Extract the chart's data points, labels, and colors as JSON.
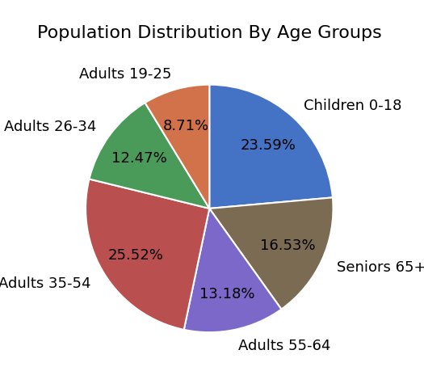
{
  "title": "Population Distribution By Age Groups",
  "labels": [
    "Children 0-18",
    "Seniors 65+",
    "Adults 55-64",
    "Adults 35-54",
    "Adults 26-34",
    "Adults 19-25"
  ],
  "sizes": [
    23.59,
    16.53,
    13.18,
    25.52,
    12.47,
    8.71
  ],
  "colors": [
    "#4472C4",
    "#7B6B52",
    "#7B68C8",
    "#B94F4F",
    "#4A9A5A",
    "#D2724A"
  ],
  "startangle": 90,
  "counterclock": false,
  "title_fontsize": 16,
  "label_fontsize": 13,
  "pct_fontsize": 13,
  "pct_distance": 0.7,
  "label_distance": 1.13
}
